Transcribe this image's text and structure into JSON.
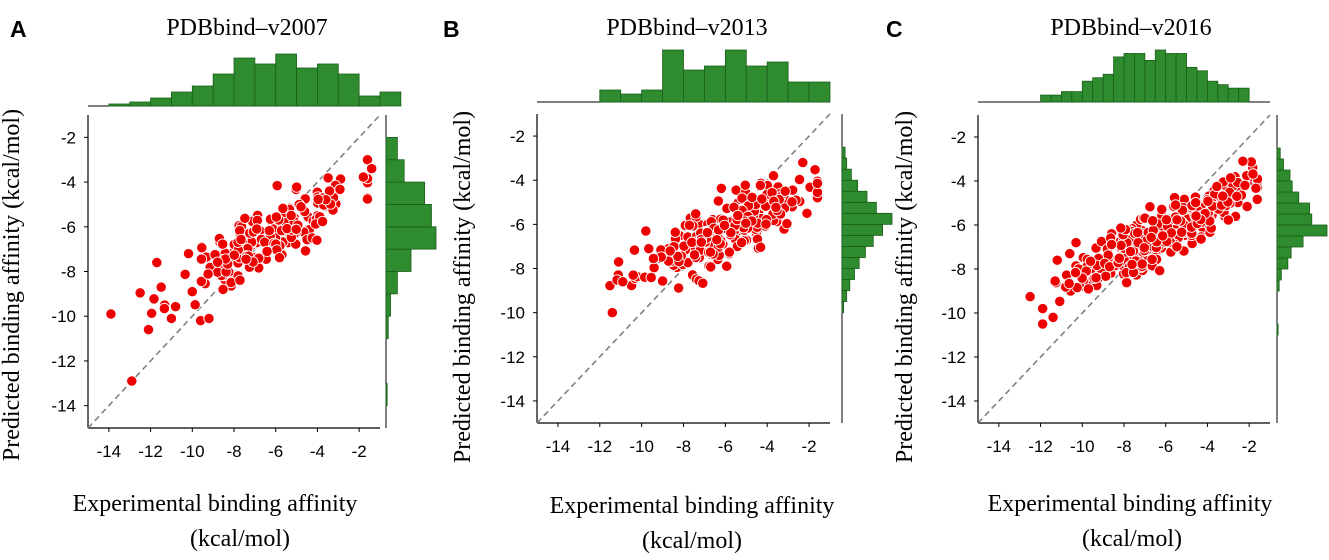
{
  "chart_data": [
    {
      "type": "scatter",
      "panel_label": "A",
      "title": "PDBbind–v2007",
      "xlabel_line1": "Experimental binding affinity",
      "xlabel_line2": "(kcal/mol)",
      "ylabel": "Predicted binding affinity (kcal/mol)",
      "xlim": [
        -15,
        -1
      ],
      "ylim": [
        -15,
        -1
      ],
      "xticks": [
        -14,
        -12,
        -10,
        -8,
        -6,
        -4,
        -2
      ],
      "yticks": [
        -2,
        -4,
        -6,
        -8,
        -10,
        -12,
        -14
      ],
      "reference_line": "y = x",
      "point_color": "#ee0000",
      "hist_color": "#2e8b2e",
      "n_points": 190,
      "seed": 11,
      "x_center": -6.4,
      "x_sd": 2.2,
      "slope": 0.52,
      "noise_sd": 0.75,
      "fixed_points": [
        [
          -13.9,
          -9.9
        ],
        [
          -12.1,
          -10.6
        ],
        [
          -12.9,
          -12.9
        ],
        [
          -11.0,
          -10.1
        ],
        [
          -9.6,
          -10.2
        ],
        [
          -9.2,
          -10.1
        ],
        [
          -11.7,
          -7.6
        ],
        [
          -1.4,
          -3.4
        ]
      ],
      "top_histogram": {
        "bins": [
          -14,
          -13,
          -12,
          -11,
          -10,
          -9,
          -8,
          -7,
          -6,
          -5,
          -4,
          -3,
          -2,
          -1
        ],
        "counts": [
          1,
          2,
          4,
          7,
          10,
          16,
          24,
          21,
          26,
          19,
          21,
          16,
          5,
          7
        ]
      },
      "right_histogram": {
        "bins": [
          -14,
          -13,
          -12,
          -11,
          -10,
          -9,
          -8,
          -7,
          -6,
          -5,
          -4,
          -3
        ],
        "counts": [
          1,
          0,
          0,
          2,
          4,
          10,
          22,
          44,
          40,
          34,
          16,
          10
        ]
      }
    },
    {
      "type": "scatter",
      "panel_label": "B",
      "title": "PDBbind–v2013",
      "xlabel_line1": "Experimental binding affinity",
      "xlabel_line2": "(kcal/mol)",
      "ylabel": "Predicted binding affinity (kcal/mol)",
      "xlim": [
        -15,
        -1
      ],
      "ylim": [
        -15,
        -1
      ],
      "xticks": [
        -14,
        -12,
        -10,
        -8,
        -6,
        -4,
        -2
      ],
      "yticks": [
        -2,
        -4,
        -6,
        -8,
        -10,
        -12,
        -14
      ],
      "reference_line": "y = x",
      "point_color": "#ee0000",
      "hist_color": "#2e8b2e",
      "n_points": 230,
      "seed": 23,
      "x_center": -6.1,
      "x_sd": 2.0,
      "slope": 0.42,
      "noise_sd": 0.65,
      "fixed_points": [
        [
          -11.4,
          -10.0
        ],
        [
          -10.9,
          -8.6
        ],
        [
          -11.1,
          -7.7
        ],
        [
          -10.4,
          -8.3
        ],
        [
          -2.3,
          -3.2
        ],
        [
          -3.7,
          -3.8
        ],
        [
          -2.1,
          -5.5
        ],
        [
          -9.8,
          -6.3
        ]
      ],
      "top_histogram": {
        "bins": [
          -12,
          -11,
          -10,
          -9,
          -8,
          -7,
          -6,
          -5,
          -4,
          -3,
          -2
        ],
        "counts": [
          3,
          2,
          3,
          13,
          8,
          9,
          13,
          9,
          10,
          5,
          5
        ]
      },
      "right_histogram": {
        "bins": [
          -10,
          -9.5,
          -9,
          -8.5,
          -8,
          -7.5,
          -7,
          -6.5,
          -6,
          -5.5,
          -5,
          -4.5,
          -4,
          -3.5,
          -3
        ],
        "counts": [
          1,
          3,
          5,
          8,
          11,
          15,
          20,
          26,
          32,
          22,
          16,
          10,
          6,
          3,
          2
        ]
      }
    },
    {
      "type": "scatter",
      "panel_label": "C",
      "title": "PDBbind–v2016",
      "xlabel_line1": "Experimental binding affinity",
      "xlabel_line2": "(kcal/mol)",
      "ylabel": "Predicted binding affinity (kcal/mol)",
      "xlim": [
        -15,
        -1
      ],
      "ylim": [
        -15,
        -1
      ],
      "xticks": [
        -14,
        -12,
        -10,
        -8,
        -6,
        -4,
        -2
      ],
      "yticks": [
        -2,
        -4,
        -6,
        -8,
        -10,
        -12,
        -14
      ],
      "reference_line": "y = x",
      "point_color": "#ee0000",
      "hist_color": "#2e8b2e",
      "n_points": 330,
      "seed": 37,
      "x_center": -6.3,
      "x_sd": 2.1,
      "slope": 0.5,
      "noise_sd": 0.6,
      "fixed_points": [
        [
          -11.9,
          -9.8
        ],
        [
          -11.9,
          -10.5
        ],
        [
          -11.4,
          -10.2
        ],
        [
          -11.2,
          -7.6
        ],
        [
          -10.6,
          -7.3
        ],
        [
          -10.3,
          -6.8
        ],
        [
          -2.3,
          -3.1
        ],
        [
          -2.2,
          -4.2
        ]
      ],
      "top_histogram": {
        "bins": [
          -12,
          -11.5,
          -11,
          -10.5,
          -10,
          -9.5,
          -9,
          -8.5,
          -8,
          -7.5,
          -7,
          -6.5,
          -6,
          -5.5,
          -5,
          -4.5,
          -4,
          -3.5,
          -3,
          -2.5,
          -2
        ],
        "counts": [
          2,
          2,
          3,
          3,
          6,
          7,
          8,
          13,
          14,
          14,
          12,
          15,
          14,
          14,
          10,
          9,
          6,
          5,
          4,
          4,
          0
        ]
      },
      "right_histogram": {
        "bins": [
          -11,
          -10.5,
          -10,
          -9.5,
          -9,
          -8.5,
          -8,
          -7.5,
          -7,
          -6.5,
          -6,
          -5.5,
          -5,
          -4.5,
          -4,
          -3.5,
          -3,
          -2.5
        ],
        "counts": [
          1,
          0,
          0,
          0,
          2,
          4,
          10,
          13,
          24,
          46,
          32,
          30,
          20,
          14,
          12,
          6,
          3,
          0
        ]
      }
    }
  ]
}
